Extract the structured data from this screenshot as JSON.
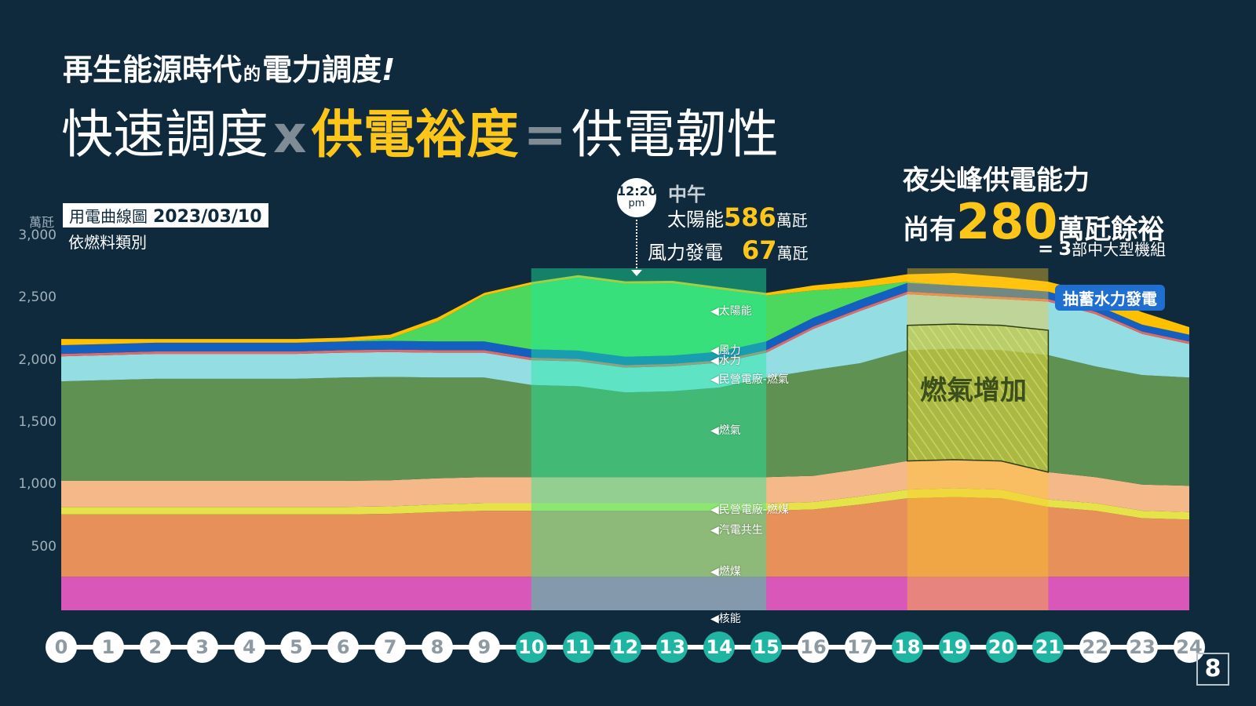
{
  "title": {
    "line1_a": "再生能源時代",
    "line1_small": "的",
    "line1_b": "電力調度",
    "line1_bang": "!",
    "line2_a": "快速調度",
    "line2_x": "x",
    "line2_hl": "供電裕度",
    "line2_eq": "=",
    "line2_b": "供電韌性"
  },
  "legend": {
    "box_text": "用電曲線圖",
    "date": "2023/03/10",
    "subtitle": "依燃料類別"
  },
  "noon_callout": {
    "time": "12:20",
    "ampm": "pm",
    "label": "中午",
    "solar_label": "太陽能",
    "solar_value": "586",
    "solar_unit": "萬瓩",
    "wind_label": "風力發電",
    "wind_value": "67",
    "wind_unit": "萬瓩"
  },
  "night_callout": {
    "line1": "夜尖峰供電能力",
    "line2_a": "尚有",
    "line2_value": "280",
    "line2_b": "萬瓩餘裕",
    "line3_eq": "=",
    "line3_num": "3",
    "line3_text": "部中大型機組"
  },
  "pumped_hydro_badge": "抽蓄水力發電",
  "gas_increase_label": "燃氣增加",
  "page_number": "8",
  "colors": {
    "background": "#0f2a3d",
    "accent_yellow": "#ffc61a",
    "highlight_teal": "#1fb5a3",
    "nuclear": "#d957b8",
    "coal": "#e8905a",
    "cogen": "#e6e34a",
    "private_coal": "#f5b888",
    "gas": "#5f9252",
    "private_gas": "#93dde3",
    "hydro": "#e06a6a",
    "wind": "#1460c0",
    "solar": "#4cd85c",
    "pumped_hydro": "#ffc000"
  },
  "chart_data": {
    "type": "area",
    "stacked": true,
    "title": "用電曲線圖 2023/03/10",
    "subtitle": "依燃料類別",
    "ylabel": "萬瓩",
    "ylim": [
      0,
      3000
    ],
    "yticks": [
      500,
      1000,
      1500,
      2000,
      2500,
      3000
    ],
    "ytick_labels": [
      "500",
      "1,000",
      "1,500",
      "2,000",
      "2,500",
      "3,000"
    ],
    "x": [
      0,
      1,
      2,
      3,
      4,
      5,
      6,
      7,
      8,
      9,
      10,
      11,
      12,
      13,
      14,
      15,
      16,
      17,
      18,
      19,
      20,
      21,
      22,
      23,
      24
    ],
    "xtick_labels": [
      "0",
      "1",
      "2",
      "3",
      "4",
      "5",
      "6",
      "7",
      "8",
      "9",
      "10",
      "11",
      "12",
      "13",
      "14",
      "15",
      "16",
      "17",
      "18",
      "19",
      "20",
      "21",
      "22",
      "23",
      "24"
    ],
    "highlighted_hours": [
      10,
      11,
      12,
      13,
      14,
      15,
      18,
      19,
      20,
      21
    ],
    "highlight_ranges": [
      [
        10,
        15
      ],
      [
        18,
        21
      ]
    ],
    "gas_increase_range": [
      18,
      21
    ],
    "grid": false,
    "series": [
      {
        "name": "核能",
        "values": [
          270,
          270,
          270,
          270,
          270,
          270,
          270,
          270,
          270,
          270,
          270,
          270,
          270,
          270,
          270,
          270,
          270,
          270,
          270,
          270,
          270,
          270,
          270,
          270,
          270
        ]
      },
      {
        "name": "燃煤",
        "values": [
          500,
          500,
          500,
          500,
          500,
          500,
          500,
          505,
          520,
          530,
          530,
          530,
          530,
          530,
          530,
          530,
          540,
          580,
          630,
          640,
          630,
          560,
          530,
          470,
          460
        ]
      },
      {
        "name": "汽電共生",
        "values": [
          60,
          60,
          60,
          60,
          60,
          60,
          60,
          60,
          60,
          60,
          60,
          60,
          60,
          60,
          60,
          60,
          60,
          65,
          70,
          70,
          70,
          60,
          60,
          60,
          60
        ]
      },
      {
        "name": "民營電廠-燃煤",
        "values": [
          210,
          210,
          210,
          210,
          210,
          210,
          210,
          210,
          210,
          210,
          210,
          210,
          210,
          210,
          210,
          210,
          210,
          220,
          230,
          230,
          230,
          220,
          210,
          210,
          210
        ]
      },
      {
        "name": "燃氣",
        "values": [
          800,
          810,
          820,
          820,
          820,
          820,
          830,
          830,
          810,
          800,
          740,
          730,
          680,
          690,
          720,
          800,
          850,
          850,
          890,
          890,
          890,
          940,
          890,
          880,
          870
        ]
      },
      {
        "name": "民營電廠-燃氣",
        "values": [
          200,
          200,
          200,
          200,
          200,
          200,
          200,
          200,
          200,
          200,
          200,
          200,
          200,
          200,
          200,
          200,
          330,
          420,
          450,
          420,
          410,
          430,
          420,
          330,
          270
        ]
      },
      {
        "name": "水力",
        "values": [
          20,
          20,
          20,
          20,
          20,
          20,
          20,
          20,
          20,
          20,
          20,
          20,
          20,
          20,
          20,
          20,
          20,
          20,
          20,
          20,
          20,
          20,
          20,
          20,
          20
        ]
      },
      {
        "name": "風力",
        "values": [
          70,
          70,
          70,
          70,
          70,
          70,
          70,
          70,
          70,
          70,
          67,
          67,
          67,
          67,
          67,
          70,
          70,
          70,
          70,
          70,
          70,
          60,
          55,
          55,
          55
        ]
      },
      {
        "name": "太陽能",
        "values": [
          0,
          0,
          0,
          0,
          0,
          0,
          0,
          20,
          160,
          370,
          520,
          586,
          586,
          580,
          500,
          370,
          220,
          100,
          10,
          0,
          0,
          0,
          0,
          0,
          0
        ]
      },
      {
        "name": "抽蓄水力發電",
        "values": [
          50,
          40,
          30,
          30,
          30,
          30,
          30,
          30,
          30,
          20,
          20,
          20,
          20,
          20,
          20,
          20,
          40,
          50,
          60,
          100,
          90,
          80,
          90,
          100,
          60
        ]
      }
    ],
    "layer_labels": [
      "太陽能",
      "風力",
      "水力",
      "民營電廠-燃氣",
      "燃氣",
      "民營電廠-燃煤",
      "汽電共生",
      "燃煤",
      "核能"
    ],
    "annotations": [
      {
        "x": 12.33,
        "text": "12:20 pm 中午 太陽能586萬瓩 風力發電67萬瓩"
      },
      {
        "x": 19.5,
        "text": "燃氣增加"
      },
      {
        "text": "夜尖峰供電能力尚有280萬瓩餘裕 = 3部中大型機組"
      }
    ]
  }
}
